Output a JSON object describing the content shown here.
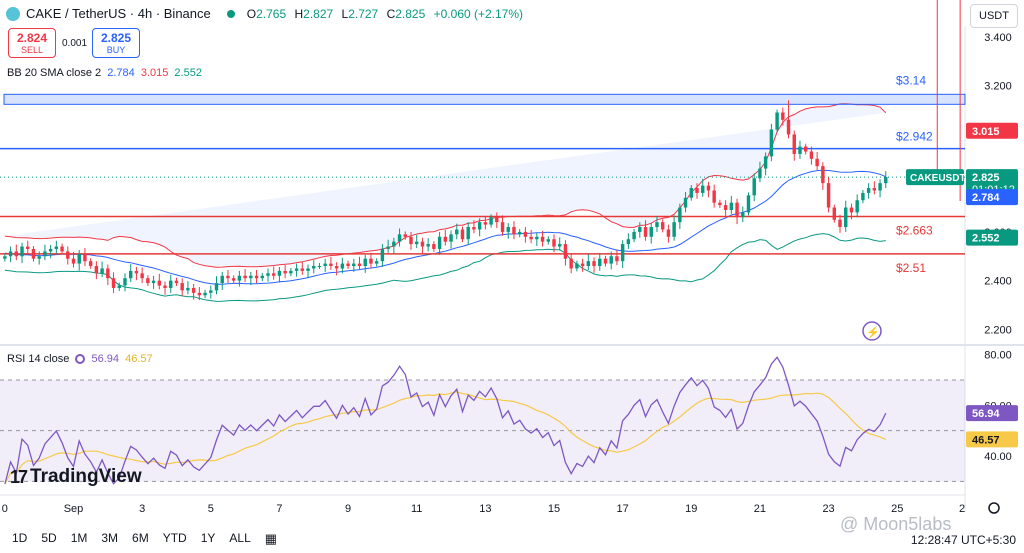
{
  "header": {
    "symbol_title": "CAKE / TetherUS · 4h · Binance",
    "ohlc": [
      {
        "k": "O",
        "v": "2.765"
      },
      {
        "k": "H",
        "v": "2.827"
      },
      {
        "k": "L",
        "v": "2.727"
      },
      {
        "k": "C",
        "v": "2.825"
      }
    ],
    "change": "+0.060 (+2.17%)"
  },
  "trade": {
    "sell_price": "2.824",
    "sell_label": "SELL",
    "spread": "0.001",
    "buy_price": "2.825",
    "buy_label": "BUY"
  },
  "currency_button": "USDT",
  "indicators": {
    "bb_label": "BB 20 SMA close 2",
    "bb_values": [
      "2.784",
      "3.015",
      "2.552"
    ],
    "rsi_label": "RSI 14 close",
    "rsi_values": [
      "56.94",
      "46.57"
    ]
  },
  "timeframes": [
    "1D",
    "5D",
    "1M",
    "3M",
    "6M",
    "YTD",
    "1Y",
    "ALL"
  ],
  "clock": "12:28:47 UTC+5:30",
  "logo_text": "TradingView",
  "watermark": "@ Moon5labs",
  "colors": {
    "up": "#089981",
    "down": "#f23645",
    "bb_basis": "#2962ff",
    "bb_upper": "#f23645",
    "bb_lower": "#089981",
    "rsi_line": "#7e57c2",
    "rsi_ma": "#f7c948",
    "resistance_line": "#2962ff",
    "support_line": "#e53935"
  },
  "chart_data": [
    {
      "type": "candlestick",
      "title": "CAKE / TetherUS · 4h · Binance",
      "y_ticks": [
        2.2,
        2.4,
        2.6,
        2.8,
        3.0,
        3.2,
        3.4
      ],
      "y_tick_labels": [
        "2.200",
        "2.400",
        "2.600",
        "2.800",
        "3.000",
        "3.200",
        "3.400"
      ],
      "ylim": [
        2.14,
        3.445
      ],
      "x_ticks": [
        "0",
        "Sep",
        "3",
        "5",
        "7",
        "9",
        "11",
        "13",
        "15",
        "17",
        "19",
        "21",
        "23",
        "25",
        "2"
      ],
      "x_tick_bars": [
        0,
        12,
        24,
        36,
        48,
        60,
        72,
        84,
        96,
        108,
        120,
        132,
        144,
        156,
        168
      ],
      "bar_count_visible": 168,
      "close": [
        2.5,
        2.52,
        2.5,
        2.54,
        2.53,
        2.49,
        2.5,
        2.52,
        2.53,
        2.54,
        2.52,
        2.49,
        2.47,
        2.51,
        2.48,
        2.46,
        2.43,
        2.45,
        2.41,
        2.37,
        2.38,
        2.41,
        2.44,
        2.43,
        2.41,
        2.39,
        2.4,
        2.38,
        2.37,
        2.4,
        2.39,
        2.36,
        2.37,
        2.35,
        2.34,
        2.35,
        2.36,
        2.39,
        2.42,
        2.41,
        2.4,
        2.42,
        2.41,
        2.42,
        2.41,
        2.42,
        2.43,
        2.42,
        2.44,
        2.43,
        2.44,
        2.45,
        2.44,
        2.45,
        2.46,
        2.46,
        2.47,
        2.46,
        2.45,
        2.47,
        2.46,
        2.47,
        2.46,
        2.49,
        2.47,
        2.48,
        2.53,
        2.54,
        2.56,
        2.59,
        2.58,
        2.55,
        2.56,
        2.54,
        2.55,
        2.53,
        2.58,
        2.56,
        2.59,
        2.61,
        2.57,
        2.62,
        2.61,
        2.64,
        2.63,
        2.66,
        2.64,
        2.6,
        2.62,
        2.59,
        2.6,
        2.58,
        2.57,
        2.58,
        2.56,
        2.57,
        2.54,
        2.55,
        2.49,
        2.45,
        2.47,
        2.46,
        2.48,
        2.46,
        2.49,
        2.47,
        2.5,
        2.48,
        2.55,
        2.57,
        2.6,
        2.62,
        2.58,
        2.62,
        2.64,
        2.61,
        2.58,
        2.64,
        2.7,
        2.74,
        2.78,
        2.76,
        2.79,
        2.77,
        2.72,
        2.71,
        2.69,
        2.72,
        2.66,
        2.68,
        2.75,
        2.82,
        2.86,
        2.91,
        3.02,
        3.09,
        3.06,
        3.0,
        2.92,
        2.95,
        2.93,
        2.9,
        2.87,
        2.8,
        2.7,
        2.65,
        2.62,
        2.7,
        2.68,
        2.73,
        2.76,
        2.78,
        2.77,
        2.8,
        2.825
      ],
      "rsi": {
        "name": "RSI 14 close",
        "ylim": [
          27,
          83
        ],
        "y_ticks": [
          40,
          60,
          80
        ],
        "y_tick_labels": [
          "40.00",
          "60.00",
          "80.00"
        ],
        "bands": [
          30,
          50,
          70
        ],
        "current_rsi": 56.94,
        "current_ma": 46.57
      },
      "overlays": [
        {
          "name": "resistance box",
          "value": 3.14,
          "label": "$3.14"
        },
        {
          "name": "resistance line",
          "value": 2.942,
          "label": "$2.942"
        },
        {
          "name": "support line",
          "value": 2.663,
          "label": "$2.663"
        },
        {
          "name": "support line",
          "value": 2.51,
          "label": "$2.51"
        }
      ],
      "price_tags": [
        {
          "label": "CAKEUSDT",
          "value": "2.825",
          "timer": "01:01:12",
          "y": 2.825
        },
        {
          "value": "3.015",
          "y": 3.015,
          "kind": "bb_upper"
        },
        {
          "value": "2.784",
          "y": 2.784,
          "kind": "bb_basis"
        },
        {
          "value": "2.552",
          "y": 2.552,
          "kind": "bb_lower"
        },
        {
          "value": "56.94",
          "y": 56.94,
          "kind": "rsi"
        },
        {
          "value": "46.57",
          "y": 46.57,
          "kind": "rsi_ma"
        }
      ]
    }
  ]
}
